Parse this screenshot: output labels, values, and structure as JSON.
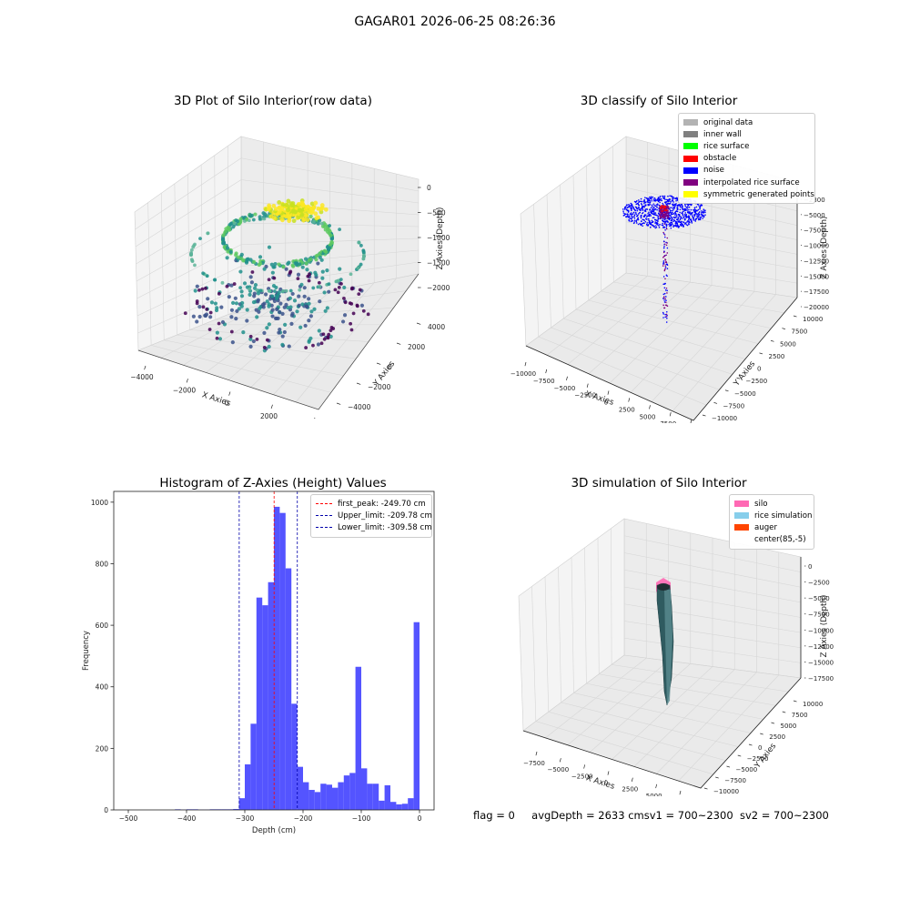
{
  "suptitle": "GAGAR01 2026-06-25 08:26:36",
  "status": {
    "flag": "flag = 0",
    "avg_depth": "avgDepth = 2633 cm",
    "sv1": "sv1 = 700~2300",
    "sv2": "sv2 = 700~2300"
  },
  "colors": {
    "histogram_bar": "#4b4bff",
    "peak_line": "#ff0000",
    "limit_line": "#0000aa",
    "pane": "#f2f2f2",
    "grid": "#d9d9d9",
    "viridis": [
      "#440154",
      "#3b528b",
      "#21918c",
      "#5ec962",
      "#fde725"
    ]
  },
  "chart_data": [
    {
      "id": "raw",
      "type": "scatter",
      "title": "3D Plot of Silo Interior(row data)",
      "xlabel": "X Axies",
      "ylabel": "Y Axies",
      "zlabel": "Z Axies (Depth)",
      "x_ticks": [
        "−4000",
        "−2000",
        "0",
        "2000",
        "4000"
      ],
      "y_ticks": [
        "−4000",
        "−2000",
        "0",
        "2000",
        "4000"
      ],
      "z_ticks": [
        "0",
        "−500",
        "−1000",
        "−1500",
        "−2000"
      ],
      "xlim": [
        -4500,
        4500
      ],
      "ylim": [
        -4500,
        4500
      ],
      "zlim": [
        -2600,
        0
      ],
      "colormap": "viridis",
      "points_description": "point cloud: dense rings near top, sparser points at lower depth"
    },
    {
      "id": "classify",
      "type": "scatter",
      "title": "3D classify of Silo Interior",
      "xlabel": "X Axies",
      "ylabel": "Y Axies",
      "zlabel": "Z Axies (Depth)",
      "x_ticks": [
        "−10000",
        "−7500",
        "−5000",
        "−2500",
        "0",
        "2500",
        "5000",
        "7500",
        "10000"
      ],
      "y_ticks": [
        "−10000",
        "−7500",
        "−5000",
        "−2500",
        "0",
        "2500",
        "5000",
        "7500",
        "10000"
      ],
      "z_ticks": [
        "−2300",
        "−5000",
        "−7500",
        "−10000",
        "−12500",
        "−15000",
        "−17500",
        "−20000"
      ],
      "legend": [
        {
          "label": "original data",
          "color": "#b3b3b3"
        },
        {
          "label": "inner wall",
          "color": "#808080"
        },
        {
          "label": "rice surface",
          "color": "#00ff00"
        },
        {
          "label": "obstacle",
          "color": "#ff0000"
        },
        {
          "label": "noise",
          "color": "#0000ff"
        },
        {
          "label": "interpolated rice surface",
          "color": "#800080"
        },
        {
          "label": "symmetric generated points",
          "color": "#ffff00"
        }
      ]
    },
    {
      "id": "hist",
      "type": "bar",
      "title": "Histogram of Z-Axies (Height) Values",
      "xlabel": "Depth (cm)",
      "ylabel": "Frequency",
      "xlim": [
        -525,
        25
      ],
      "ylim": [
        0,
        1035
      ],
      "x_ticks": [
        -500,
        -400,
        -300,
        -200,
        -100,
        0
      ],
      "y_ticks": [
        0,
        200,
        400,
        600,
        800,
        1000
      ],
      "bin_width": 10,
      "bins": [
        {
          "x": -420,
          "v": 2
        },
        {
          "x": -410,
          "v": 1
        },
        {
          "x": -400,
          "v": 2
        },
        {
          "x": -390,
          "v": 2
        },
        {
          "x": -380,
          "v": 1
        },
        {
          "x": -370,
          "v": 1
        },
        {
          "x": -360,
          "v": 2
        },
        {
          "x": -350,
          "v": 2
        },
        {
          "x": -340,
          "v": 2
        },
        {
          "x": -330,
          "v": 2
        },
        {
          "x": -320,
          "v": 3
        },
        {
          "x": -310,
          "v": 38
        },
        {
          "x": -300,
          "v": 148
        },
        {
          "x": -290,
          "v": 280
        },
        {
          "x": -280,
          "v": 690
        },
        {
          "x": -270,
          "v": 665
        },
        {
          "x": -260,
          "v": 740
        },
        {
          "x": -250,
          "v": 985
        },
        {
          "x": -240,
          "v": 965
        },
        {
          "x": -230,
          "v": 785
        },
        {
          "x": -220,
          "v": 345
        },
        {
          "x": -210,
          "v": 140
        },
        {
          "x": -200,
          "v": 90
        },
        {
          "x": -190,
          "v": 65
        },
        {
          "x": -180,
          "v": 58
        },
        {
          "x": -170,
          "v": 85
        },
        {
          "x": -160,
          "v": 82
        },
        {
          "x": -150,
          "v": 72
        },
        {
          "x": -140,
          "v": 90
        },
        {
          "x": -130,
          "v": 112
        },
        {
          "x": -120,
          "v": 120
        },
        {
          "x": -110,
          "v": 465
        },
        {
          "x": -100,
          "v": 135
        },
        {
          "x": -90,
          "v": 85
        },
        {
          "x": -80,
          "v": 85
        },
        {
          "x": -70,
          "v": 30
        },
        {
          "x": -60,
          "v": 80
        },
        {
          "x": -50,
          "v": 26
        },
        {
          "x": -40,
          "v": 18
        },
        {
          "x": -30,
          "v": 20
        },
        {
          "x": -20,
          "v": 38
        },
        {
          "x": -10,
          "v": 610
        }
      ],
      "lines": [
        {
          "label": "first_peak: -249.70 cm",
          "x": -249.7,
          "color": "#ff0000"
        },
        {
          "label": "Upper_limit: -209.78 cm",
          "x": -209.78,
          "color": "#0000aa"
        },
        {
          "label": "Lower_limit: -309.58 cm",
          "x": -309.58,
          "color": "#0000aa"
        }
      ]
    },
    {
      "id": "sim",
      "type": "area",
      "title": "3D simulation of Silo Interior",
      "xlabel": "X Axies",
      "ylabel": "Y Axies",
      "zlabel": "Z Axies (Depth)",
      "x_ticks": [
        "−7500",
        "−5000",
        "−2500",
        "0",
        "2500",
        "5000",
        "7500"
      ],
      "y_ticks": [
        "−10000",
        "−7500",
        "−5000",
        "−2500",
        "0",
        "2500",
        "5000",
        "7500",
        "10000"
      ],
      "z_ticks": [
        "0",
        "−2500",
        "−5000",
        "−7500",
        "−10000",
        "−12500",
        "−15000",
        "−17500"
      ],
      "legend": [
        {
          "label": "silo",
          "color": "#ff69b4"
        },
        {
          "label": "rice simulation",
          "color": "#87ceeb"
        },
        {
          "label": "auger",
          "color": "#ff4500"
        },
        {
          "label": "center(85,-5)",
          "color": "#ffffff"
        }
      ]
    }
  ]
}
